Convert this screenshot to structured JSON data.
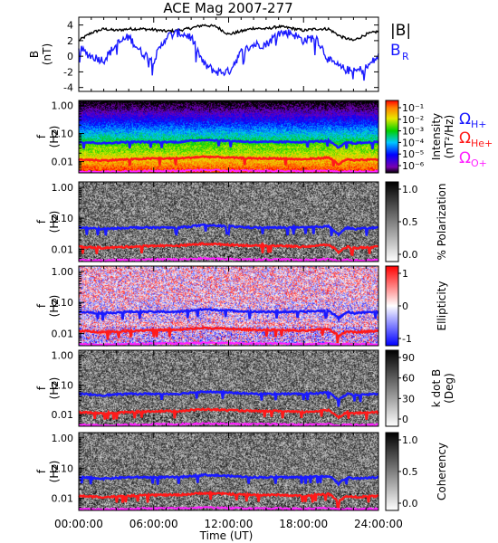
{
  "title": "ACE Mag 2007-277",
  "xlabel": "Time (UT)",
  "x_ticks": [
    "00:00:00",
    "06:00:00",
    "12:00:00",
    "18:00:00",
    "24:00:00"
  ],
  "legend": {
    "b_mag": "|B|",
    "b_r": "B",
    "b_r_sub": "R",
    "omega": "Ω",
    "h_sub": "H+",
    "he_sub": "He+",
    "o_sub": "O+"
  },
  "colors": {
    "b_mag": "#000000",
    "b_r": "#1a1aff",
    "omega_h": "#1a1aff",
    "omega_he": "#ff1a1a",
    "omega_o": "#ff22ff"
  },
  "ylabels": {
    "b_main": "B",
    "b_unit": "(nT)",
    "f_main": "f",
    "f_unit": "(Hz)"
  },
  "b_ticks": [
    "4",
    "2",
    "0",
    "-2",
    "-4"
  ],
  "f_ticks": [
    "1.00",
    "0.10",
    "0.01"
  ],
  "colorbars": [
    {
      "label1": "Intensity",
      "label2": "(nT²/Hz)",
      "ticks": [
        "10⁻¹",
        "10⁻²",
        "10⁻³",
        "10⁻⁴",
        "10⁻⁵",
        "10⁻⁶"
      ],
      "scale": "rainbow"
    },
    {
      "label1": "% Polarization",
      "label2": "",
      "ticks": [
        "1.0",
        "0.5",
        "0.0"
      ],
      "scale": "gray"
    },
    {
      "label1": "Ellipticity",
      "label2": "",
      "ticks": [
        "1",
        "0",
        "-1"
      ],
      "scale": "redblue"
    },
    {
      "label1": "k dot B",
      "label2": "(Deg)",
      "ticks": [
        "90",
        "60",
        "30",
        "0"
      ],
      "scale": "gray"
    },
    {
      "label1": "Coherency",
      "label2": "",
      "ticks": [
        "1.0",
        "0.5",
        "0.0"
      ],
      "scale": "gray"
    }
  ],
  "chart_data": {
    "type": "line",
    "title": "ACE Mag 2007-277",
    "xlabel": "Time (UT)",
    "x_range_hours": [
      0,
      24
    ],
    "panels": [
      {
        "name": "B",
        "ylabel": "B (nT)",
        "ylim": [
          -4.5,
          5
        ],
        "series": [
          {
            "name": "|B|",
            "x": [
              0,
              1,
              2,
              3,
              4,
              5,
              6,
              7,
              8,
              9,
              10,
              11,
              12,
              13,
              14,
              15,
              16,
              17,
              18,
              19,
              20,
              21,
              22,
              23,
              24
            ],
            "y": [
              2.0,
              3.0,
              3.5,
              3.3,
              3.5,
              3.5,
              3.4,
              3.2,
              3.3,
              3.6,
              4.0,
              3.8,
              2.8,
              3.2,
              3.6,
              3.5,
              3.8,
              3.6,
              3.3,
              3.5,
              3.5,
              2.5,
              2.0,
              2.8,
              3.2
            ]
          },
          {
            "name": "B_R",
            "x": [
              0,
              1,
              2,
              3,
              4,
              5,
              6,
              7,
              8,
              9,
              10,
              11,
              12,
              13,
              14,
              15,
              16,
              17,
              18,
              19,
              20,
              21,
              22,
              23,
              24
            ],
            "y": [
              1.0,
              0.0,
              -0.5,
              1.5,
              2.5,
              0.5,
              -0.5,
              2.5,
              3.0,
              2.5,
              -1.0,
              -2.0,
              -2.0,
              0.5,
              1.5,
              1.5,
              3.0,
              3.0,
              2.0,
              2.5,
              -0.5,
              -1.5,
              -2.0,
              -1.5,
              0.0
            ]
          }
        ]
      },
      {
        "name": "spectra",
        "ylabel": "f (Hz)",
        "yscale": "log",
        "ylim": [
          0.004,
          1.5
        ],
        "series": [
          {
            "name": "Ω H+",
            "x": [
              0,
              2,
              4,
              6,
              8,
              10,
              12,
              14,
              16,
              18,
              20,
              20.8,
              21.5,
              22,
              24
            ],
            "y": [
              0.05,
              0.045,
              0.05,
              0.05,
              0.05,
              0.06,
              0.055,
              0.05,
              0.05,
              0.05,
              0.055,
              0.03,
              0.05,
              0.045,
              0.05
            ]
          },
          {
            "name": "Ω He+",
            "x": [
              0,
              2,
              4,
              6,
              8,
              10,
              12,
              14,
              16,
              18,
              20,
              20.8,
              21.5,
              22,
              24
            ],
            "y": [
              0.012,
              0.011,
              0.012,
              0.013,
              0.013,
              0.015,
              0.014,
              0.013,
              0.013,
              0.012,
              0.014,
              0.008,
              0.012,
              0.011,
              0.012
            ]
          },
          {
            "name": "Ω O+",
            "x": [
              0,
              2,
              4,
              6,
              8,
              10,
              12,
              14,
              16,
              18,
              20,
              20.8,
              21.5,
              22,
              24
            ],
            "y": [
              0.0045,
              0.0043,
              0.0045,
              0.0047,
              0.0047,
              0.005,
              0.0048,
              0.0047,
              0.0047,
              0.0045,
              0.0048,
              0.0042,
              0.0046,
              0.0044,
              0.0045
            ]
          }
        ]
      }
    ]
  }
}
